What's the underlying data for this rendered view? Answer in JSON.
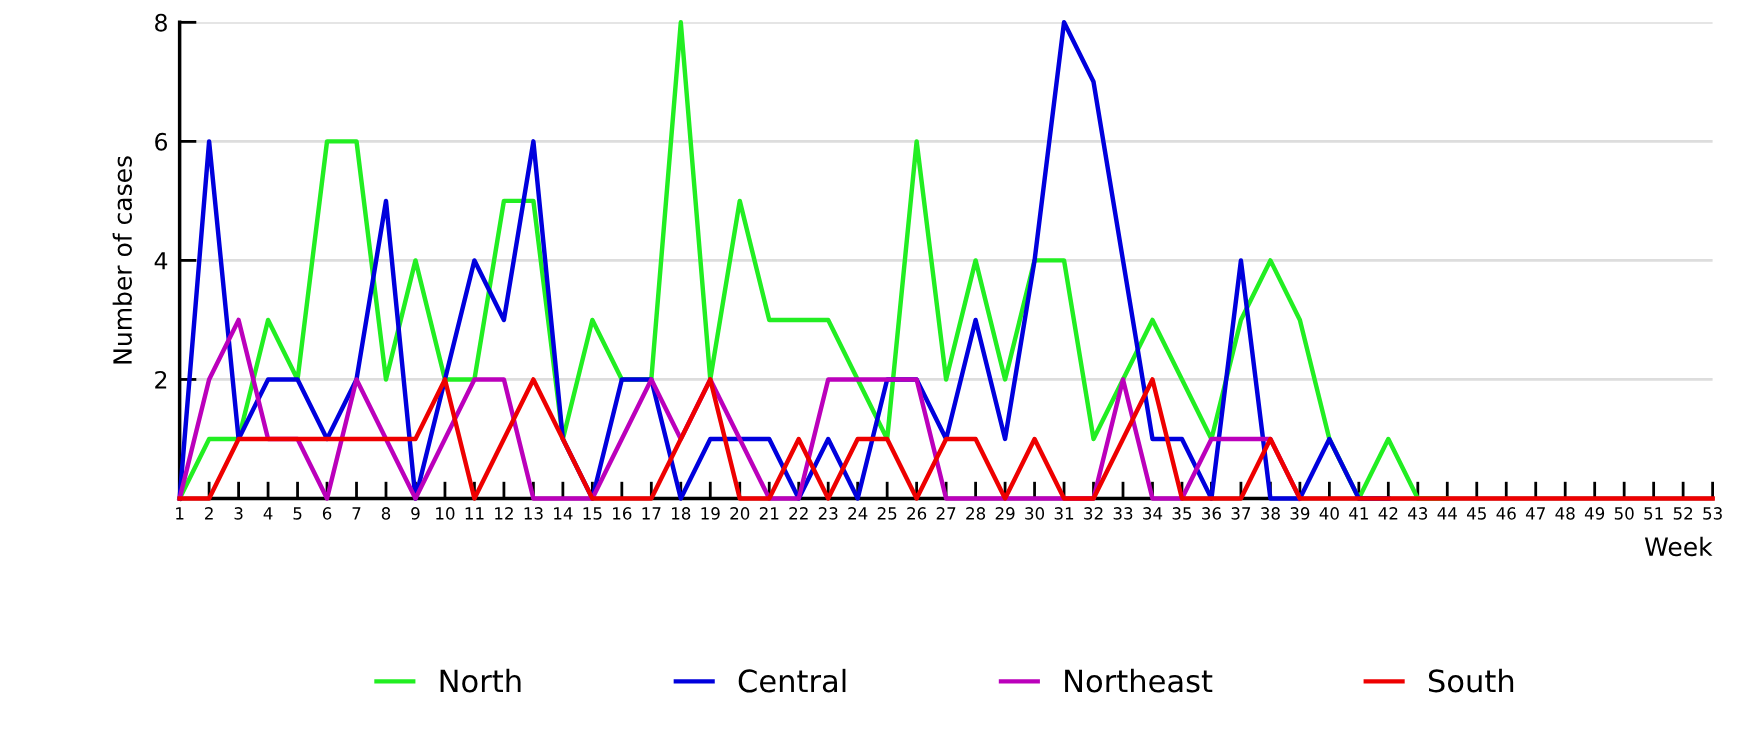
{
  "chart_data": {
    "type": "line",
    "xlabel": "Week",
    "ylabel": "Number of cases",
    "x": [
      1,
      2,
      3,
      4,
      5,
      6,
      7,
      8,
      9,
      10,
      11,
      12,
      13,
      14,
      15,
      16,
      17,
      18,
      19,
      20,
      21,
      22,
      23,
      24,
      25,
      26,
      27,
      28,
      29,
      30,
      31,
      32,
      33,
      34,
      35,
      36,
      37,
      38,
      39,
      40,
      41,
      42,
      43,
      44,
      45,
      46,
      47,
      48,
      49,
      50,
      51,
      52,
      53
    ],
    "xlim": [
      1,
      53
    ],
    "xticks": [
      1,
      2,
      3,
      4,
      5,
      6,
      7,
      8,
      9,
      10,
      11,
      12,
      13,
      14,
      15,
      16,
      17,
      18,
      19,
      20,
      21,
      22,
      23,
      24,
      25,
      26,
      27,
      28,
      29,
      30,
      31,
      32,
      33,
      34,
      35,
      36,
      37,
      38,
      39,
      40,
      41,
      42,
      43,
      44,
      45,
      46,
      47,
      48,
      49,
      50,
      51,
      52,
      53
    ],
    "ylim": [
      0,
      8
    ],
    "yticks": [
      2,
      4,
      6,
      8
    ],
    "grid": "y",
    "legend": "bottom",
    "marker": "none",
    "line_style": "solid",
    "series": [
      {
        "name": "North",
        "color": "#22ee22",
        "values": [
          0,
          1,
          1,
          3,
          2,
          6,
          6,
          2,
          4,
          2,
          2,
          5,
          5,
          1,
          3,
          2,
          2,
          8,
          2,
          5,
          3,
          3,
          3,
          2,
          1,
          6,
          2,
          4,
          2,
          4,
          4,
          1,
          2,
          3,
          2,
          1,
          3,
          4,
          3,
          1,
          0,
          1,
          0,
          0,
          null,
          null,
          null,
          null,
          null,
          null,
          null,
          null,
          null
        ]
      },
      {
        "name": "Central",
        "color": "#0000dd",
        "values": [
          0,
          6,
          1,
          2,
          2,
          1,
          2,
          5,
          0,
          2,
          4,
          3,
          6,
          1,
          0,
          2,
          2,
          0,
          1,
          1,
          1,
          0,
          1,
          0,
          2,
          2,
          1,
          3,
          1,
          4,
          8,
          7,
          4,
          1,
          1,
          0,
          4,
          0,
          0,
          1,
          0,
          0,
          null,
          null,
          null,
          null,
          null,
          null,
          null,
          null,
          null,
          null,
          null
        ]
      },
      {
        "name": "Northeast",
        "color": "#bb00bb",
        "values": [
          0,
          2,
          3,
          1,
          1,
          0,
          2,
          1,
          0,
          1,
          2,
          2,
          0,
          0,
          0,
          1,
          2,
          1,
          2,
          1,
          0,
          0,
          2,
          2,
          2,
          2,
          0,
          0,
          0,
          0,
          0,
          0,
          2,
          0,
          0,
          1,
          1,
          1,
          0,
          null,
          null,
          null,
          null,
          null,
          null,
          null,
          null,
          null,
          null,
          null,
          null,
          null,
          null
        ]
      },
      {
        "name": "South",
        "color": "#ee0000",
        "values": [
          0,
          0,
          1,
          1,
          1,
          1,
          1,
          1,
          1,
          2,
          0,
          1,
          2,
          1,
          0,
          0,
          0,
          1,
          2,
          0,
          0,
          1,
          0,
          1,
          1,
          0,
          1,
          1,
          0,
          1,
          0,
          0,
          1,
          2,
          0,
          0,
          0,
          1,
          0,
          0,
          0,
          0,
          0,
          0,
          0,
          0,
          0,
          0,
          0,
          0,
          0,
          0,
          0
        ]
      }
    ]
  }
}
